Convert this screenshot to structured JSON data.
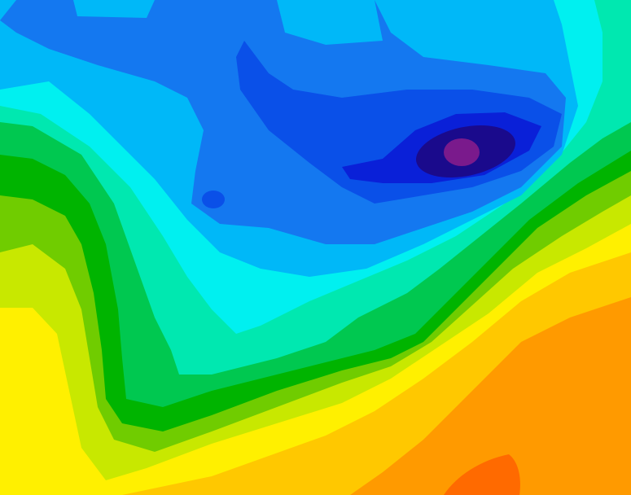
{
  "map": {
    "type": "filled-contour",
    "levels": [
      {
        "name": "level-dark-orange",
        "color": "#ff6a00"
      },
      {
        "name": "level-orange",
        "color": "#ff9a00"
      },
      {
        "name": "level-gold",
        "color": "#ffc800"
      },
      {
        "name": "level-yellow",
        "color": "#fff000"
      },
      {
        "name": "level-lime",
        "color": "#c8e800"
      },
      {
        "name": "level-yellow-green",
        "color": "#70cc00"
      },
      {
        "name": "level-dark-green",
        "color": "#00b400"
      },
      {
        "name": "level-green",
        "color": "#00c850"
      },
      {
        "name": "level-aquamarine",
        "color": "#00e8b0"
      },
      {
        "name": "level-cyan",
        "color": "#00f0f0"
      },
      {
        "name": "level-sky",
        "color": "#00b8f8"
      },
      {
        "name": "level-dodger",
        "color": "#1478f0"
      },
      {
        "name": "level-blue",
        "color": "#0a50e8"
      },
      {
        "name": "level-dark-blue",
        "color": "#0a20d8"
      },
      {
        "name": "level-navy",
        "color": "#1a0a8c"
      },
      {
        "name": "level-purple",
        "color": "#7a1a8c"
      }
    ]
  }
}
